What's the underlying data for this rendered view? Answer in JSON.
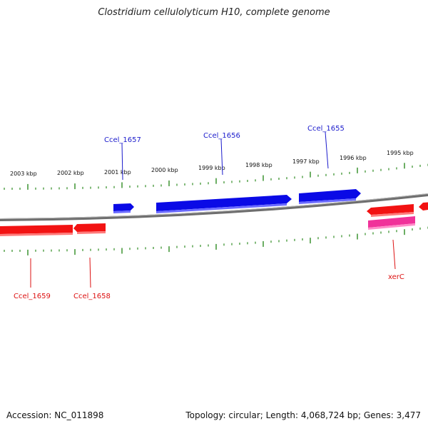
{
  "title": "Clostridium cellulolyticum H10, complete genome",
  "accession": "Accession: NC_011898",
  "summary": "Topology: circular; Length: 4,068,724 bp; Genes: 3,477",
  "ticks": [
    "2003 kbp",
    "2002 kbp",
    "2001 kbp",
    "2000 kbp",
    "1999 kbp",
    "1998 kbp",
    "1997 kbp",
    "1996 kbp",
    "1995 kbp"
  ],
  "genes": {
    "forward": [
      "Ccel_1657",
      "Ccel_1656",
      "Ccel_1655"
    ],
    "reverse": [
      "Ccel_1659",
      "Ccel_1658",
      "xerC"
    ]
  },
  "colors": {
    "forward_gene": "#0a0ae6",
    "reverse_gene": "#f21212",
    "xerC_gene": "#f0329a",
    "backbone": "#808080",
    "tick": "#2e8b22",
    "forward_label": "#1a1acc",
    "reverse_label": "#dd1111"
  }
}
